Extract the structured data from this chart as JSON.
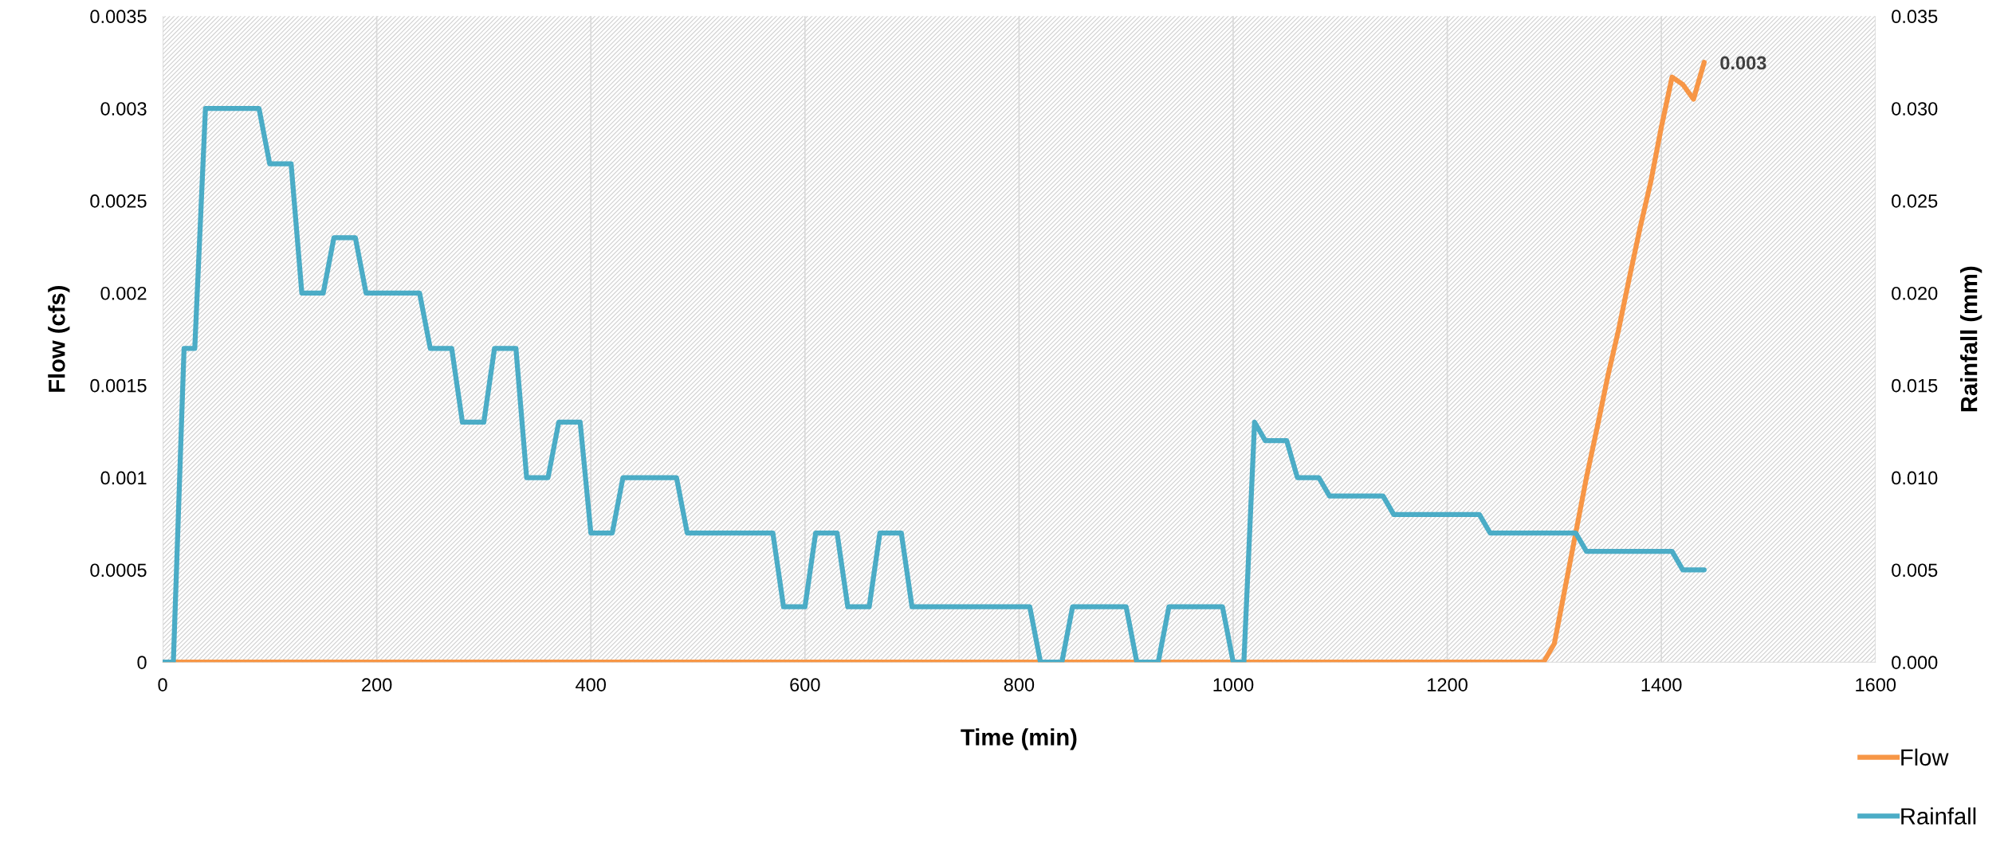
{
  "chart_data": {
    "type": "line",
    "xlabel": "Time (min)",
    "ylabel": "Flow (cfs)",
    "y2label": "Rainfall (mm)",
    "xlim": [
      0,
      1600
    ],
    "xticks": [
      0,
      200,
      400,
      600,
      800,
      1000,
      1200,
      1400,
      1600
    ],
    "ylim": [
      0,
      0.0035
    ],
    "yticks": [
      0,
      0.0005,
      0.001,
      0.0015,
      0.002,
      0.0025,
      0.003,
      0.0035
    ],
    "y2lim": [
      0,
      0.035
    ],
    "y2ticks": [
      {
        "value": 0,
        "label": "0.000"
      },
      {
        "value": 0.005,
        "label": "0.005"
      },
      {
        "value": 0.01,
        "label": "0.010"
      },
      {
        "value": 0.015,
        "label": "0.015"
      },
      {
        "value": 0.02,
        "label": "0.020"
      },
      {
        "value": 0.025,
        "label": "0.025"
      },
      {
        "value": 0.03,
        "label": "0.030"
      },
      {
        "value": 0.035,
        "label": "0.035"
      }
    ],
    "grid": "x",
    "legend": "bottom right",
    "marker": "none",
    "line_style": "solid",
    "series": [
      {
        "name": "Flow",
        "color": "#f79646",
        "x": [
          0,
          1290,
          1300,
          1310,
          1320,
          1330,
          1340,
          1350,
          1360,
          1370,
          1380,
          1390,
          1400,
          1410,
          1420,
          1430,
          1440
        ],
        "values": [
          0,
          0,
          0.0001,
          0.0004,
          0.0007,
          0.001,
          0.00127,
          0.00155,
          0.0018,
          0.00208,
          0.00235,
          0.0026,
          0.0029,
          0.00317,
          0.00313,
          0.00305,
          0.00325
        ],
        "value_labels": [
          null,
          null,
          null,
          null,
          null,
          null,
          null,
          null,
          null,
          null,
          null,
          null,
          null,
          null,
          null,
          null,
          "0.003"
        ]
      },
      {
        "name": "Rainfall",
        "color": "#4bacc6",
        "axis": "y2",
        "x": [
          0,
          10,
          20,
          30,
          40,
          90,
          100,
          120,
          130,
          150,
          160,
          180,
          190,
          240,
          250,
          270,
          280,
          300,
          310,
          330,
          340,
          360,
          370,
          390,
          400,
          420,
          430,
          480,
          490,
          570,
          580,
          600,
          610,
          630,
          640,
          660,
          670,
          690,
          700,
          810,
          820,
          840,
          850,
          900,
          910,
          930,
          940,
          990,
          1000,
          1010,
          1020,
          1030,
          1050,
          1060,
          1080,
          1090,
          1140,
          1150,
          1230,
          1240,
          1320,
          1330,
          1410,
          1420,
          1440
        ],
        "values": [
          0,
          0,
          0.017,
          0.017,
          0.03,
          0.03,
          0.027,
          0.027,
          0.02,
          0.02,
          0.023,
          0.023,
          0.02,
          0.02,
          0.017,
          0.017,
          0.013,
          0.013,
          0.017,
          0.017,
          0.01,
          0.01,
          0.013,
          0.013,
          0.007,
          0.007,
          0.01,
          0.01,
          0.007,
          0.007,
          0.003,
          0.003,
          0.007,
          0.007,
          0.003,
          0.003,
          0.007,
          0.007,
          0.003,
          0.003,
          0,
          0,
          0.003,
          0.003,
          0,
          0,
          0.003,
          0.003,
          0,
          0,
          0.013,
          0.012,
          0.012,
          0.01,
          0.01,
          0.009,
          0.009,
          0.008,
          0.008,
          0.007,
          0.007,
          0.006,
          0.006,
          0.005,
          0.005
        ]
      }
    ]
  }
}
